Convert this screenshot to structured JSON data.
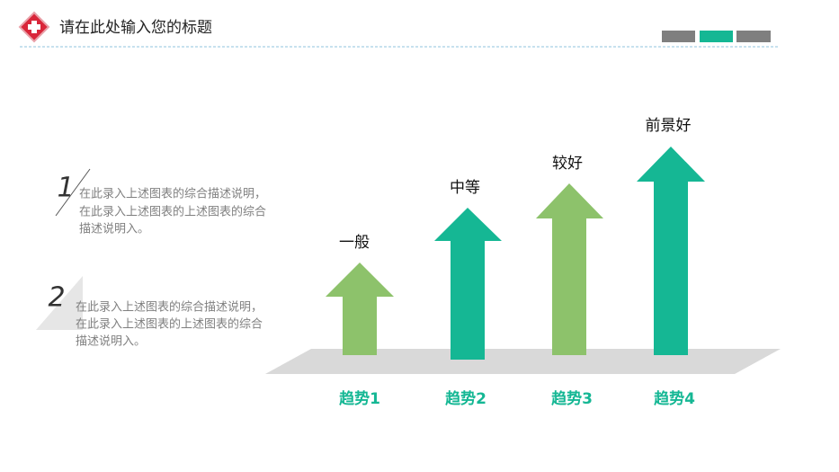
{
  "header": {
    "title": "请在此处输入您的标题"
  },
  "items": [
    {
      "number": "1",
      "lines": [
        "在此录入上述图表的综合描述说明，",
        "在此录入上述图表的上述图表的综合",
        "描述说明入。"
      ]
    },
    {
      "number": "2",
      "lines": [
        "在此录入上述图表的综合描述说明，",
        "在此录入上述图表的上述图表的综合",
        "描述说明入。"
      ]
    }
  ],
  "arrows": [
    {
      "label": "一般",
      "caption": "趋势1"
    },
    {
      "label": "中等",
      "caption": "趋势2"
    },
    {
      "label": "较好",
      "caption": "趋势3"
    },
    {
      "label": "前景好",
      "caption": "趋势4"
    }
  ]
}
